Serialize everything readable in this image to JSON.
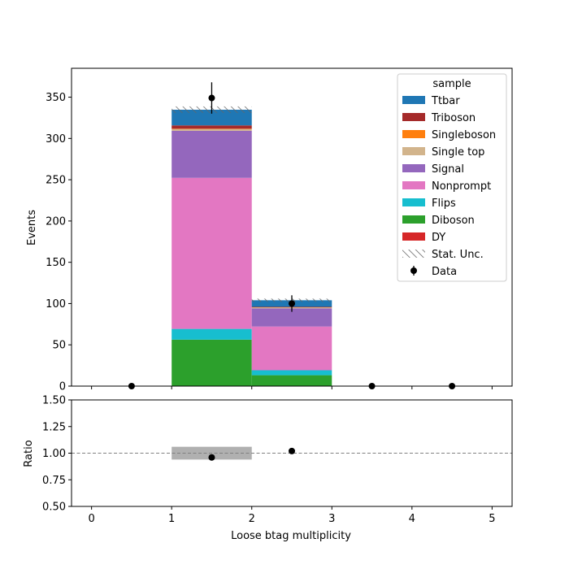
{
  "chart_data": {
    "type": "bar",
    "stacked": true,
    "bin_edges": [
      0,
      1,
      2,
      3,
      4,
      5
    ],
    "xlabel": "Loose btag multiplicity",
    "ylabel": "Events",
    "ratio_ylabel": "Ratio",
    "ylim": [
      0,
      385
    ],
    "ratio_ylim": [
      0.5,
      1.5
    ],
    "x_ticks": [
      "0",
      "1",
      "2",
      "3",
      "4",
      "5"
    ],
    "y_ticks": [
      "0",
      "50",
      "100",
      "150",
      "200",
      "250",
      "300",
      "350"
    ],
    "ratio_ticks": [
      "0.50",
      "0.75",
      "1.00",
      "1.25",
      "1.50"
    ],
    "legend_title": "sample",
    "legend_position": "top-right",
    "series": [
      {
        "name": "DY",
        "color": "#d62728",
        "values": [
          0,
          0.3,
          0.2,
          0,
          0
        ]
      },
      {
        "name": "Diboson",
        "color": "#2ca02c",
        "values": [
          0,
          56,
          13,
          0,
          0
        ]
      },
      {
        "name": "Flips",
        "color": "#17becf",
        "values": [
          0,
          13,
          6,
          0,
          0
        ]
      },
      {
        "name": "Nonprompt",
        "color": "#e377c2",
        "values": [
          0,
          183,
          53,
          0,
          0
        ]
      },
      {
        "name": "Signal",
        "color": "#9467bd",
        "values": [
          0,
          57,
          22,
          0,
          0
        ]
      },
      {
        "name": "Single top",
        "color": "#d2b48c",
        "values": [
          0,
          2,
          1,
          0,
          0
        ]
      },
      {
        "name": "Singleboson",
        "color": "#ff7f0e",
        "values": [
          0,
          0.5,
          0.2,
          0,
          0
        ]
      },
      {
        "name": "Triboson",
        "color": "#a52a2a",
        "values": [
          0,
          4,
          0.6,
          0,
          0
        ]
      },
      {
        "name": "Ttbar",
        "color": "#1f77b4",
        "values": [
          0,
          19,
          8,
          0,
          0
        ]
      }
    ],
    "legend_order": [
      "Ttbar",
      "Triboson",
      "Singleboson",
      "Single top",
      "Signal",
      "Nonprompt",
      "Flips",
      "Diboson",
      "DY"
    ],
    "stat_unc_label": "Stat. Unc.",
    "stat_unc": [
      0,
      4,
      2,
      0,
      0
    ],
    "data_label": "Data",
    "data": {
      "x": [
        0.5,
        1.5,
        2.5,
        3.5,
        4.5
      ],
      "y": [
        0,
        349,
        100,
        0,
        0
      ],
      "err": [
        0,
        19,
        10,
        0,
        0
      ]
    },
    "ratio": {
      "x": [
        1.5,
        2.5
      ],
      "y": [
        0.96,
        1.02
      ],
      "band": [
        {
          "x0": 1,
          "x1": 2,
          "lo": 0.94,
          "hi": 1.06
        }
      ],
      "reference": 1.0
    }
  }
}
